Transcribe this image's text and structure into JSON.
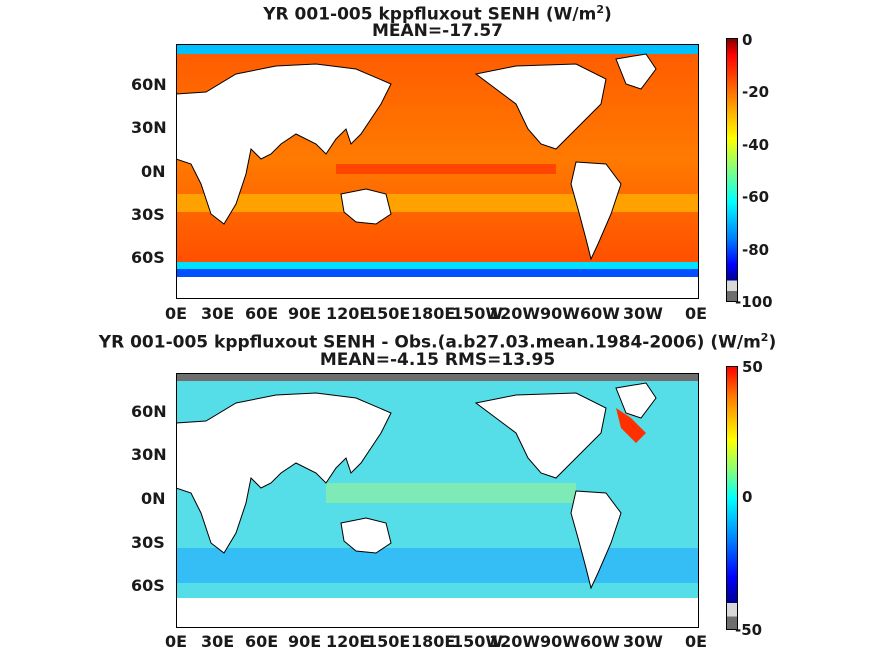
{
  "panels": [
    {
      "title_line1": "YR 001-005 kppfluxout  SENH (W/m",
      "title_sup": "2",
      "title_close": ")",
      "title_line2": "MEAN=-17.57",
      "y_ticks": [
        "60N",
        "30N",
        "0N",
        "30S",
        "60S"
      ],
      "x_ticks": [
        "0E",
        "30E",
        "60E",
        "90E",
        "120E",
        "150E",
        "180E",
        "150W",
        "120W",
        "90W",
        "60W",
        "30W",
        "0E"
      ],
      "colorbar_ticks": [
        "0",
        "-20",
        "-40",
        "-60",
        "-80",
        "-100"
      ],
      "colorbar_range": [
        -100,
        0
      ]
    },
    {
      "title_line1": "YR 001-005 kppfluxout SENH - Obs.(a.b27.03.mean.1984-2006) (W/m",
      "title_sup": "2",
      "title_close": ")",
      "title_line2": "MEAN=-4.15 RMS=13.95",
      "y_ticks": [
        "60N",
        "30N",
        "0N",
        "30S",
        "60S"
      ],
      "x_ticks": [
        "0E",
        "30E",
        "60E",
        "90E",
        "120E",
        "150E",
        "180E",
        "150W",
        "120W",
        "90W",
        "60W",
        "30W",
        "0E"
      ],
      "colorbar_ticks": [
        "50",
        "0",
        "-50"
      ],
      "colorbar_range": [
        -50,
        50
      ]
    }
  ],
  "colormap": [
    "#00008f",
    "#0000ff",
    "#0080ff",
    "#00ffff",
    "#80ff80",
    "#ffff00",
    "#ff8000",
    "#ff0000",
    "#800000"
  ],
  "land_color": "#ffffff",
  "missing_color": "#6e6e6e"
}
